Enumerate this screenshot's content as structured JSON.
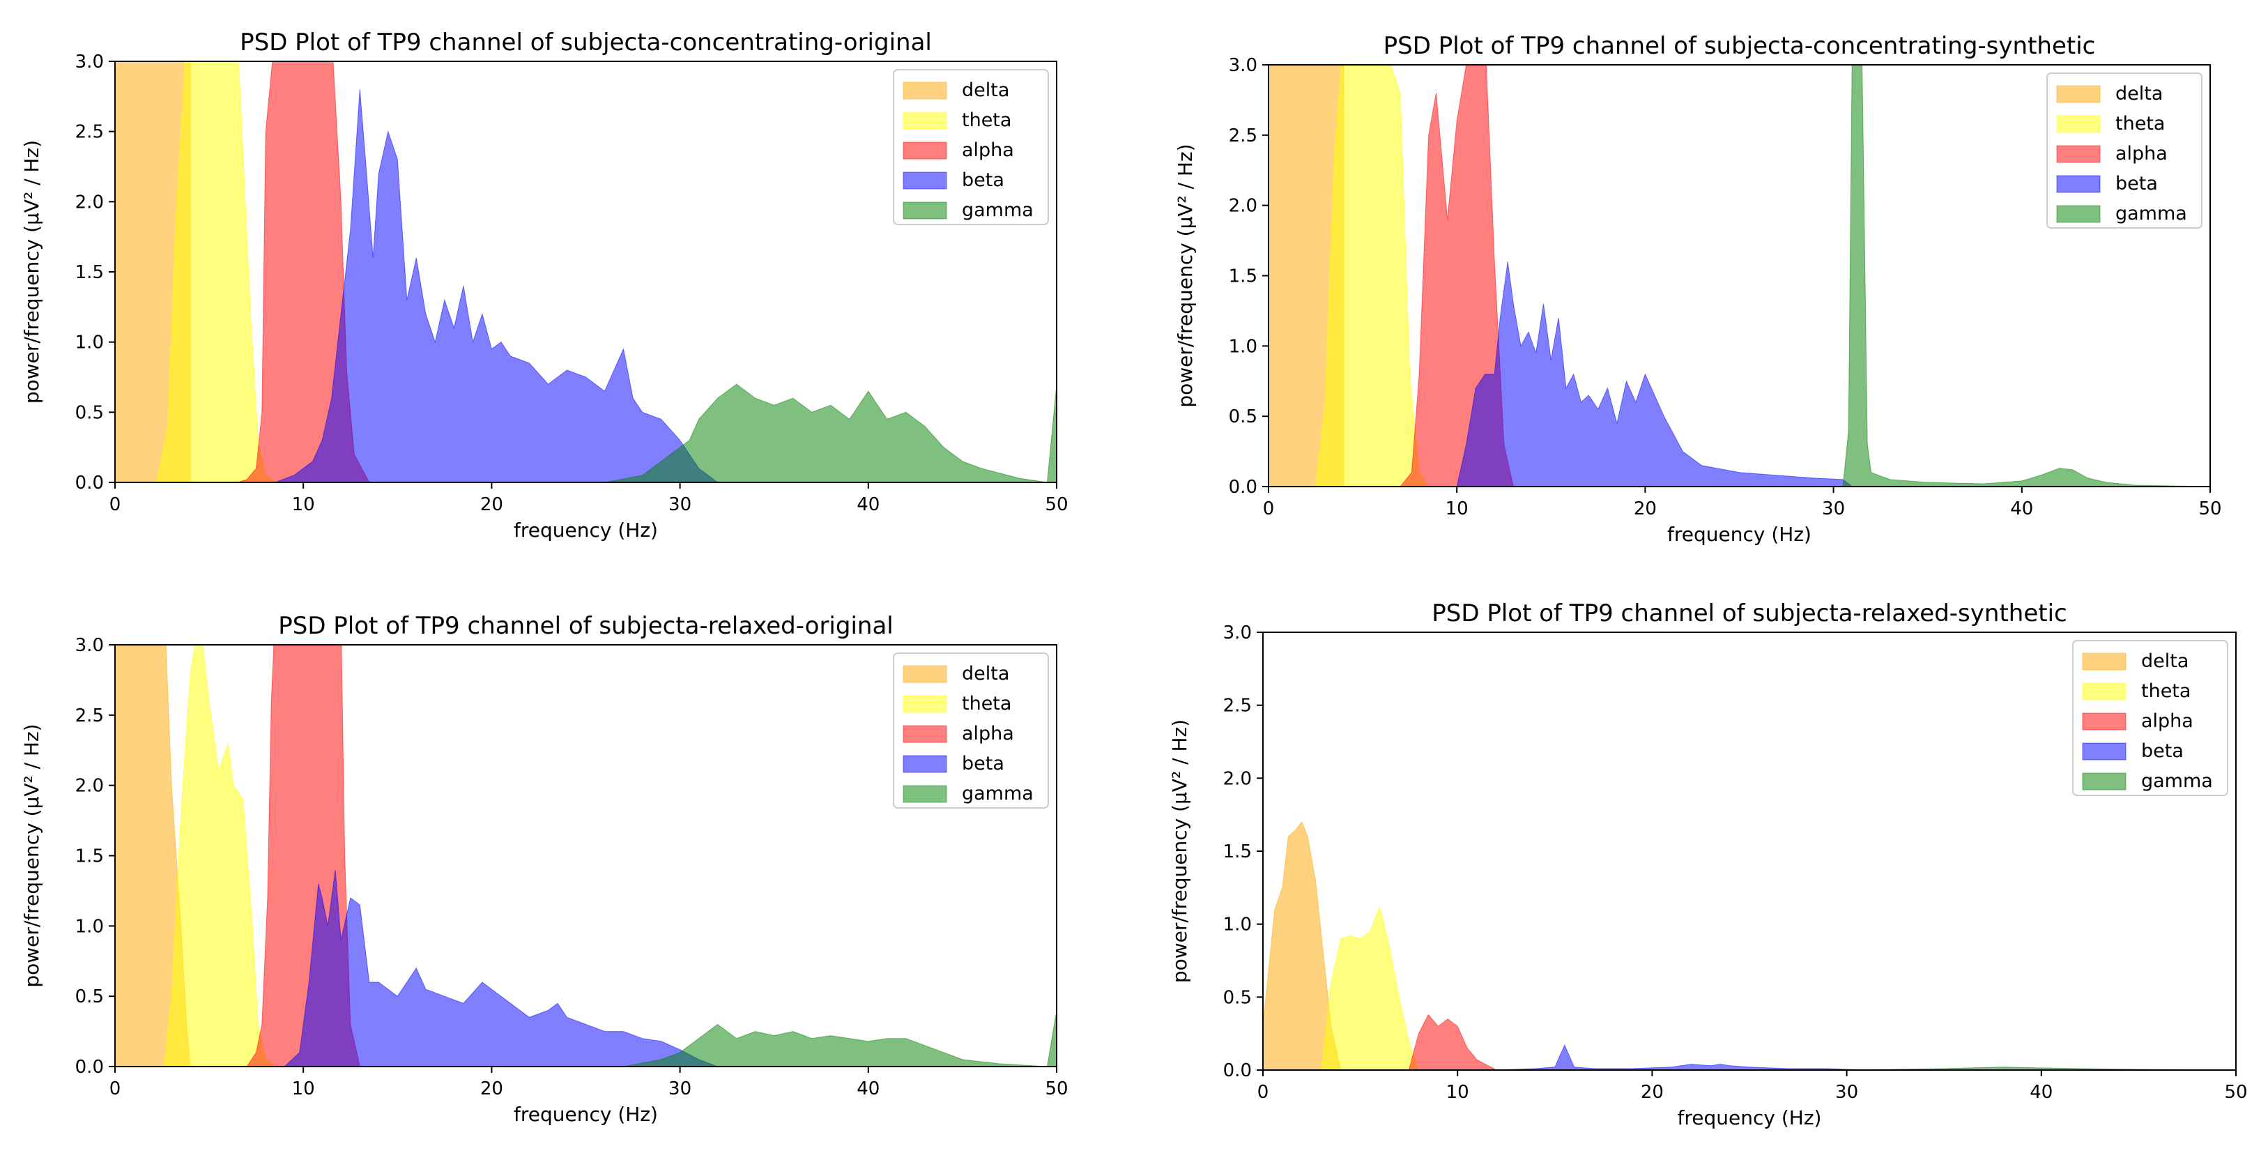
{
  "chart_data": [
    {
      "type": "area",
      "title": "PSD Plot of TP9 channel of subjecta-concentrating-original",
      "xlabel": "frequency (Hz)",
      "ylabel": "power/frequency (µV² / Hz)",
      "xlim": [
        0,
        50
      ],
      "ylim": [
        0,
        3.0
      ],
      "xticks": [
        "0",
        "10",
        "20",
        "30",
        "40",
        "50"
      ],
      "yticks": [
        "0.0",
        "0.5",
        "1.0",
        "1.5",
        "2.0",
        "2.5",
        "3.0"
      ],
      "legend_position": "top-right",
      "series": [
        {
          "name": "delta",
          "color": "#ffa500",
          "x": [
            0,
            1.5,
            2.0,
            2.3,
            2.6,
            3.0,
            3.5,
            4.0
          ],
          "y": [
            3.2,
            3.2,
            3.2,
            3.2,
            3.1,
            3.1,
            3.0,
            3.0
          ]
        },
        {
          "name": "theta",
          "color": "#ffff00",
          "x": [
            2.2,
            2.8,
            3.2,
            3.8,
            4.5,
            5.5,
            6.5,
            7.2,
            7.6,
            8.0,
            8.5
          ],
          "y": [
            0.0,
            0.4,
            1.8,
            3.2,
            3.2,
            3.2,
            3.2,
            1.2,
            0.3,
            0.05,
            0.0
          ]
        },
        {
          "name": "alpha",
          "color": "#ff0000",
          "x": [
            6.5,
            7.0,
            7.5,
            7.8,
            8.0,
            8.5,
            9.5,
            10.5,
            11.5,
            12.0,
            12.3,
            12.7,
            13.5
          ],
          "y": [
            0.0,
            0.02,
            0.1,
            0.5,
            2.5,
            3.2,
            3.2,
            3.2,
            3.2,
            2.0,
            0.8,
            0.2,
            0.0
          ]
        },
        {
          "name": "beta",
          "color": "#0000ff",
          "x": [
            8.5,
            9.5,
            10.5,
            11.0,
            11.5,
            12.0,
            12.5,
            13.0,
            13.3,
            13.7,
            14.0,
            14.5,
            15.0,
            15.5,
            16.0,
            16.5,
            17.0,
            17.5,
            18.0,
            18.5,
            19.0,
            19.5,
            20.0,
            20.5,
            21.0,
            22.0,
            23.0,
            24.0,
            25.0,
            26.0,
            27.0,
            27.5,
            28.0,
            29.0,
            30.0,
            31.0,
            32.0
          ],
          "y": [
            0.0,
            0.05,
            0.15,
            0.3,
            0.6,
            1.2,
            1.8,
            2.8,
            2.3,
            1.6,
            2.2,
            2.5,
            2.3,
            1.3,
            1.6,
            1.2,
            1.0,
            1.3,
            1.1,
            1.4,
            1.0,
            1.2,
            0.95,
            1.0,
            0.9,
            0.85,
            0.7,
            0.8,
            0.75,
            0.65,
            0.95,
            0.6,
            0.5,
            0.45,
            0.3,
            0.1,
            0.0
          ]
        },
        {
          "name": "gamma",
          "color": "#008000",
          "x": [
            26.0,
            28.0,
            29.5,
            30.5,
            31.0,
            32.0,
            33.0,
            34.0,
            35.0,
            36.0,
            37.0,
            38.0,
            39.0,
            40.0,
            41.0,
            42.0,
            43.0,
            44.0,
            45.0,
            46.0,
            48.0,
            49.5,
            50.0,
            50.0
          ],
          "y": [
            0.0,
            0.05,
            0.2,
            0.3,
            0.45,
            0.6,
            0.7,
            0.6,
            0.55,
            0.6,
            0.5,
            0.55,
            0.45,
            0.65,
            0.45,
            0.5,
            0.4,
            0.25,
            0.15,
            0.1,
            0.03,
            0.0,
            0.7,
            0.0
          ]
        }
      ]
    },
    {
      "type": "area",
      "title": "PSD Plot of TP9 channel of subjecta-concentrating-synthetic",
      "xlabel": "frequency (Hz)",
      "ylabel": "power/frequency (µV² / Hz)",
      "xlim": [
        0,
        50
      ],
      "ylim": [
        0,
        3.0
      ],
      "xticks": [
        "0",
        "10",
        "20",
        "30",
        "40",
        "50"
      ],
      "yticks": [
        "0.0",
        "0.5",
        "1.0",
        "1.5",
        "2.0",
        "2.5",
        "3.0"
      ],
      "legend_position": "top-right",
      "series": [
        {
          "name": "delta",
          "color": "#ffa500",
          "x": [
            0,
            2.0,
            3.0,
            3.5,
            4.0
          ],
          "y": [
            3.2,
            3.2,
            3.2,
            3.1,
            3.0
          ]
        },
        {
          "name": "theta",
          "color": "#ffff00",
          "x": [
            2.5,
            3.0,
            3.5,
            4.0,
            4.5,
            6.0,
            7.0,
            7.5,
            8.0,
            8.5
          ],
          "y": [
            0.0,
            0.6,
            2.4,
            3.2,
            3.2,
            3.2,
            2.8,
            0.8,
            0.1,
            0.0
          ]
        },
        {
          "name": "alpha",
          "color": "#ff0000",
          "x": [
            7.0,
            7.6,
            8.0,
            8.5,
            8.9,
            9.5,
            10.0,
            10.5,
            11.0,
            11.5,
            12.0,
            12.5,
            13.0
          ],
          "y": [
            0.0,
            0.1,
            0.8,
            2.5,
            2.8,
            1.9,
            2.6,
            3.0,
            3.2,
            3.2,
            1.6,
            0.3,
            0.0
          ]
        },
        {
          "name": "beta",
          "color": "#0000ff",
          "x": [
            10.0,
            10.5,
            11.0,
            11.5,
            12.0,
            12.3,
            12.7,
            13.0,
            13.4,
            13.8,
            14.2,
            14.6,
            15.0,
            15.4,
            15.8,
            16.2,
            16.6,
            17.0,
            17.5,
            18.0,
            18.5,
            19.0,
            19.5,
            20.0,
            21.0,
            22.0,
            23.0,
            25.0,
            27.0,
            29.0,
            30.5,
            31.0
          ],
          "y": [
            0.0,
            0.3,
            0.7,
            0.8,
            0.8,
            1.2,
            1.6,
            1.3,
            1.0,
            1.1,
            0.95,
            1.3,
            0.9,
            1.2,
            0.7,
            0.8,
            0.6,
            0.65,
            0.55,
            0.7,
            0.45,
            0.75,
            0.6,
            0.8,
            0.5,
            0.25,
            0.15,
            0.1,
            0.08,
            0.06,
            0.05,
            0.0
          ]
        },
        {
          "name": "gamma",
          "color": "#008000",
          "x": [
            30.5,
            30.8,
            31.0,
            31.2,
            31.5,
            31.8,
            32.0,
            33.0,
            35.0,
            38.0,
            40.0,
            41.0,
            42.0,
            42.7,
            43.5,
            44.5,
            46.0,
            50.0
          ],
          "y": [
            0.0,
            0.4,
            3.2,
            3.2,
            3.2,
            0.3,
            0.1,
            0.05,
            0.03,
            0.02,
            0.04,
            0.08,
            0.13,
            0.12,
            0.06,
            0.03,
            0.01,
            0.0
          ]
        }
      ]
    },
    {
      "type": "area",
      "title": "PSD Plot of TP9 channel of subjecta-relaxed-original",
      "xlabel": "frequency (Hz)",
      "ylabel": "power/frequency (µV² / Hz)",
      "xlim": [
        0,
        50
      ],
      "ylim": [
        0,
        3.0
      ],
      "xticks": [
        "0",
        "10",
        "20",
        "30",
        "40",
        "50"
      ],
      "yticks": [
        "0.0",
        "0.5",
        "1.0",
        "1.5",
        "2.0",
        "2.5",
        "3.0"
      ],
      "legend_position": "top-right",
      "series": [
        {
          "name": "delta",
          "color": "#ffa500",
          "x": [
            0,
            1.5,
            2.2,
            2.7,
            3.0,
            3.5,
            3.8,
            4.0
          ],
          "y": [
            3.2,
            3.2,
            3.2,
            3.0,
            2.0,
            1.0,
            0.3,
            0.0
          ]
        },
        {
          "name": "theta",
          "color": "#ffff00",
          "x": [
            2.6,
            3.0,
            3.5,
            4.0,
            4.5,
            5.0,
            5.5,
            6.0,
            6.3,
            6.8,
            7.3,
            7.6,
            8.0,
            8.5
          ],
          "y": [
            0.0,
            0.5,
            1.8,
            2.8,
            3.2,
            2.6,
            2.1,
            2.3,
            2.0,
            1.9,
            1.0,
            0.3,
            0.05,
            0.0
          ]
        },
        {
          "name": "alpha",
          "color": "#ff0000",
          "x": [
            7.0,
            7.5,
            7.8,
            8.1,
            8.3,
            8.5,
            9.5,
            10.5,
            11.5,
            12.0,
            12.2,
            12.5,
            13.0
          ],
          "y": [
            0.0,
            0.1,
            0.3,
            1.2,
            2.6,
            3.2,
            3.2,
            3.2,
            3.2,
            3.2,
            1.5,
            0.3,
            0.0
          ]
        },
        {
          "name": "beta",
          "color": "#0000ff",
          "x": [
            9.0,
            9.8,
            10.3,
            10.8,
            11.0,
            11.3,
            11.7,
            12.0,
            12.5,
            13.0,
            13.5,
            14.0,
            15.0,
            16.0,
            16.5,
            17.5,
            18.5,
            19.5,
            20.0,
            21.0,
            22.0,
            23.0,
            23.5,
            24.0,
            25.0,
            26.0,
            27.0,
            28.0,
            29.0,
            30.0,
            31.0,
            32.0
          ],
          "y": [
            0.0,
            0.1,
            0.6,
            1.3,
            1.2,
            1.0,
            1.4,
            0.9,
            1.2,
            1.15,
            0.6,
            0.6,
            0.5,
            0.7,
            0.55,
            0.5,
            0.45,
            0.6,
            0.55,
            0.45,
            0.35,
            0.4,
            0.45,
            0.35,
            0.3,
            0.25,
            0.25,
            0.2,
            0.18,
            0.12,
            0.05,
            0.0
          ]
        },
        {
          "name": "gamma",
          "color": "#008000",
          "x": [
            27.0,
            29.0,
            30.0,
            31.0,
            32.0,
            33.0,
            34.0,
            35.0,
            36.0,
            37.0,
            38.0,
            39.0,
            40.0,
            41.0,
            42.0,
            43.0,
            44.0,
            45.0,
            47.0,
            49.5,
            50.0,
            50.0
          ],
          "y": [
            0.0,
            0.05,
            0.1,
            0.2,
            0.3,
            0.2,
            0.25,
            0.22,
            0.25,
            0.2,
            0.22,
            0.2,
            0.18,
            0.2,
            0.2,
            0.15,
            0.1,
            0.05,
            0.02,
            0.0,
            0.4,
            0.0
          ]
        }
      ]
    },
    {
      "type": "area",
      "title": "PSD Plot of TP9 channel of subjecta-relaxed-synthetic",
      "xlabel": "frequency (Hz)",
      "ylabel": "power/frequency (µV² / Hz)",
      "xlim": [
        0,
        50
      ],
      "ylim": [
        0,
        3.0
      ],
      "xticks": [
        "0",
        "10",
        "20",
        "30",
        "40",
        "50"
      ],
      "yticks": [
        "0.0",
        "0.5",
        "1.0",
        "1.5",
        "2.0",
        "2.5",
        "3.0"
      ],
      "legend_position": "top-right",
      "series": [
        {
          "name": "delta",
          "color": "#ffa500",
          "x": [
            0,
            0.3,
            0.6,
            1.0,
            1.3,
            1.7,
            2.0,
            2.3,
            2.7,
            3.1,
            3.5,
            4.0
          ],
          "y": [
            0.3,
            0.7,
            1.1,
            1.25,
            1.6,
            1.65,
            1.7,
            1.6,
            1.3,
            0.8,
            0.3,
            0.0
          ]
        },
        {
          "name": "theta",
          "color": "#ffff00",
          "x": [
            3.0,
            3.5,
            4.0,
            4.5,
            5.0,
            5.5,
            6.0,
            6.5,
            7.0,
            7.5,
            8.0
          ],
          "y": [
            0.0,
            0.6,
            0.9,
            0.92,
            0.9,
            0.95,
            1.12,
            0.85,
            0.5,
            0.2,
            0.0
          ]
        },
        {
          "name": "alpha",
          "color": "#ff0000",
          "x": [
            7.5,
            8.0,
            8.5,
            9.0,
            9.5,
            10.0,
            10.5,
            11.0,
            12.0
          ],
          "y": [
            0.0,
            0.25,
            0.38,
            0.3,
            0.35,
            0.3,
            0.15,
            0.07,
            0.0
          ]
        },
        {
          "name": "beta",
          "color": "#0000ff",
          "x": [
            12.0,
            14.0,
            15.0,
            15.5,
            16.0,
            17.0,
            19.0,
            21.0,
            22.0,
            23.0,
            23.5,
            24.0,
            25.0,
            27.0,
            29.0,
            31.0
          ],
          "y": [
            0.0,
            0.01,
            0.02,
            0.17,
            0.02,
            0.01,
            0.01,
            0.02,
            0.04,
            0.03,
            0.04,
            0.03,
            0.02,
            0.01,
            0.01,
            0.0
          ]
        },
        {
          "name": "gamma",
          "color": "#008000",
          "x": [
            30.0,
            35.0,
            38.0,
            40.0,
            42.0,
            45.0,
            50.0
          ],
          "y": [
            0.0,
            0.01,
            0.02,
            0.015,
            0.01,
            0.005,
            0.0
          ]
        }
      ]
    }
  ]
}
